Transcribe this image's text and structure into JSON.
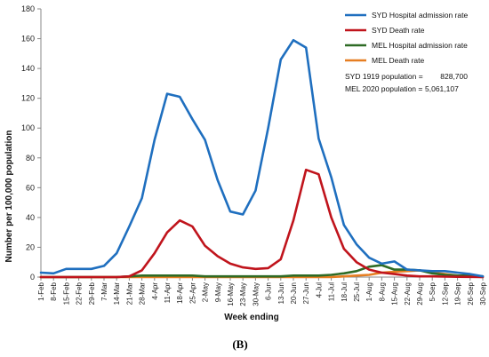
{
  "chart_data": {
    "type": "line",
    "xlabel": "Week ending",
    "ylabel": "Number per 100,000 population",
    "ylim": [
      0,
      180
    ],
    "yticks": [
      0,
      20,
      40,
      60,
      80,
      100,
      120,
      140,
      160,
      180
    ],
    "grid": false,
    "legend_position": "top-right",
    "categories": [
      "1-Feb",
      "8-Feb",
      "15-Feb",
      "22-Feb",
      "29-Feb",
      "7-Mar",
      "14-Mar",
      "21-Mar",
      "28-Mar",
      "4-Apr",
      "11-Apr",
      "18-Apr",
      "25-Apr",
      "2-May",
      "9-May",
      "16-May",
      "23-May",
      "30-May",
      "6-Jun",
      "13-Jun",
      "20-Jun",
      "27-Jun",
      "4-Jul",
      "11-Jul",
      "18-Jul",
      "25-Jul",
      "1-Aug",
      "8-Aug",
      "15-Aug",
      "22-Aug",
      "29-Aug",
      "5-Sep",
      "12-Sep",
      "19-Sep",
      "26-Sep",
      "30-Sep"
    ],
    "series": [
      {
        "name": "SYD Hospital admission rate",
        "color": "#1f6fbf",
        "values": [
          3,
          2.5,
          5.5,
          5.5,
          5.5,
          7.5,
          16,
          34,
          53,
          92,
          123,
          121,
          106,
          92,
          65,
          44,
          42,
          58,
          100,
          146,
          159,
          154,
          93,
          67,
          35,
          22,
          13,
          9,
          10.5,
          5,
          4.5,
          4,
          4,
          3,
          2,
          0.5
        ]
      },
      {
        "name": "SYD Death rate",
        "color": "#c0141c",
        "values": [
          0,
          0,
          0,
          0,
          0,
          0,
          0,
          0.5,
          4.5,
          16,
          30,
          38,
          34,
          21,
          14,
          9,
          6.5,
          5.5,
          6,
          12,
          38,
          72,
          69,
          40,
          19,
          10,
          5,
          3,
          2,
          1,
          0.5,
          0.5,
          0.3,
          0.2,
          0.1,
          0
        ]
      },
      {
        "name": "MEL Hospital admission rate",
        "color": "#2e6b25",
        "values": [
          0,
          0,
          0,
          0,
          0,
          0,
          0,
          0.5,
          1,
          1,
          1,
          1,
          1,
          0.5,
          0.5,
          0.5,
          0.5,
          0.5,
          0.5,
          0.5,
          1,
          1,
          1,
          1.5,
          2.5,
          4,
          7,
          8,
          5,
          5,
          4.5,
          2.5,
          1.5,
          1,
          1,
          0.5
        ]
      },
      {
        "name": "MEL Death rate",
        "color": "#e67e22",
        "values": [
          0,
          0,
          0,
          0,
          0,
          0,
          0,
          0,
          0,
          0,
          0,
          0,
          0,
          0,
          0,
          0,
          0,
          0,
          0,
          0,
          0,
          0,
          0,
          0,
          0.5,
          1,
          1.5,
          3,
          3.5,
          4,
          4.5,
          3,
          2,
          1,
          0.5,
          0
        ]
      }
    ],
    "notes": [
      {
        "label": "SYD 1919 population =",
        "value": "828,700"
      },
      {
        "label": "MEL 2020 population =",
        "value": "5,061,107"
      }
    ],
    "caption": "(B)"
  }
}
